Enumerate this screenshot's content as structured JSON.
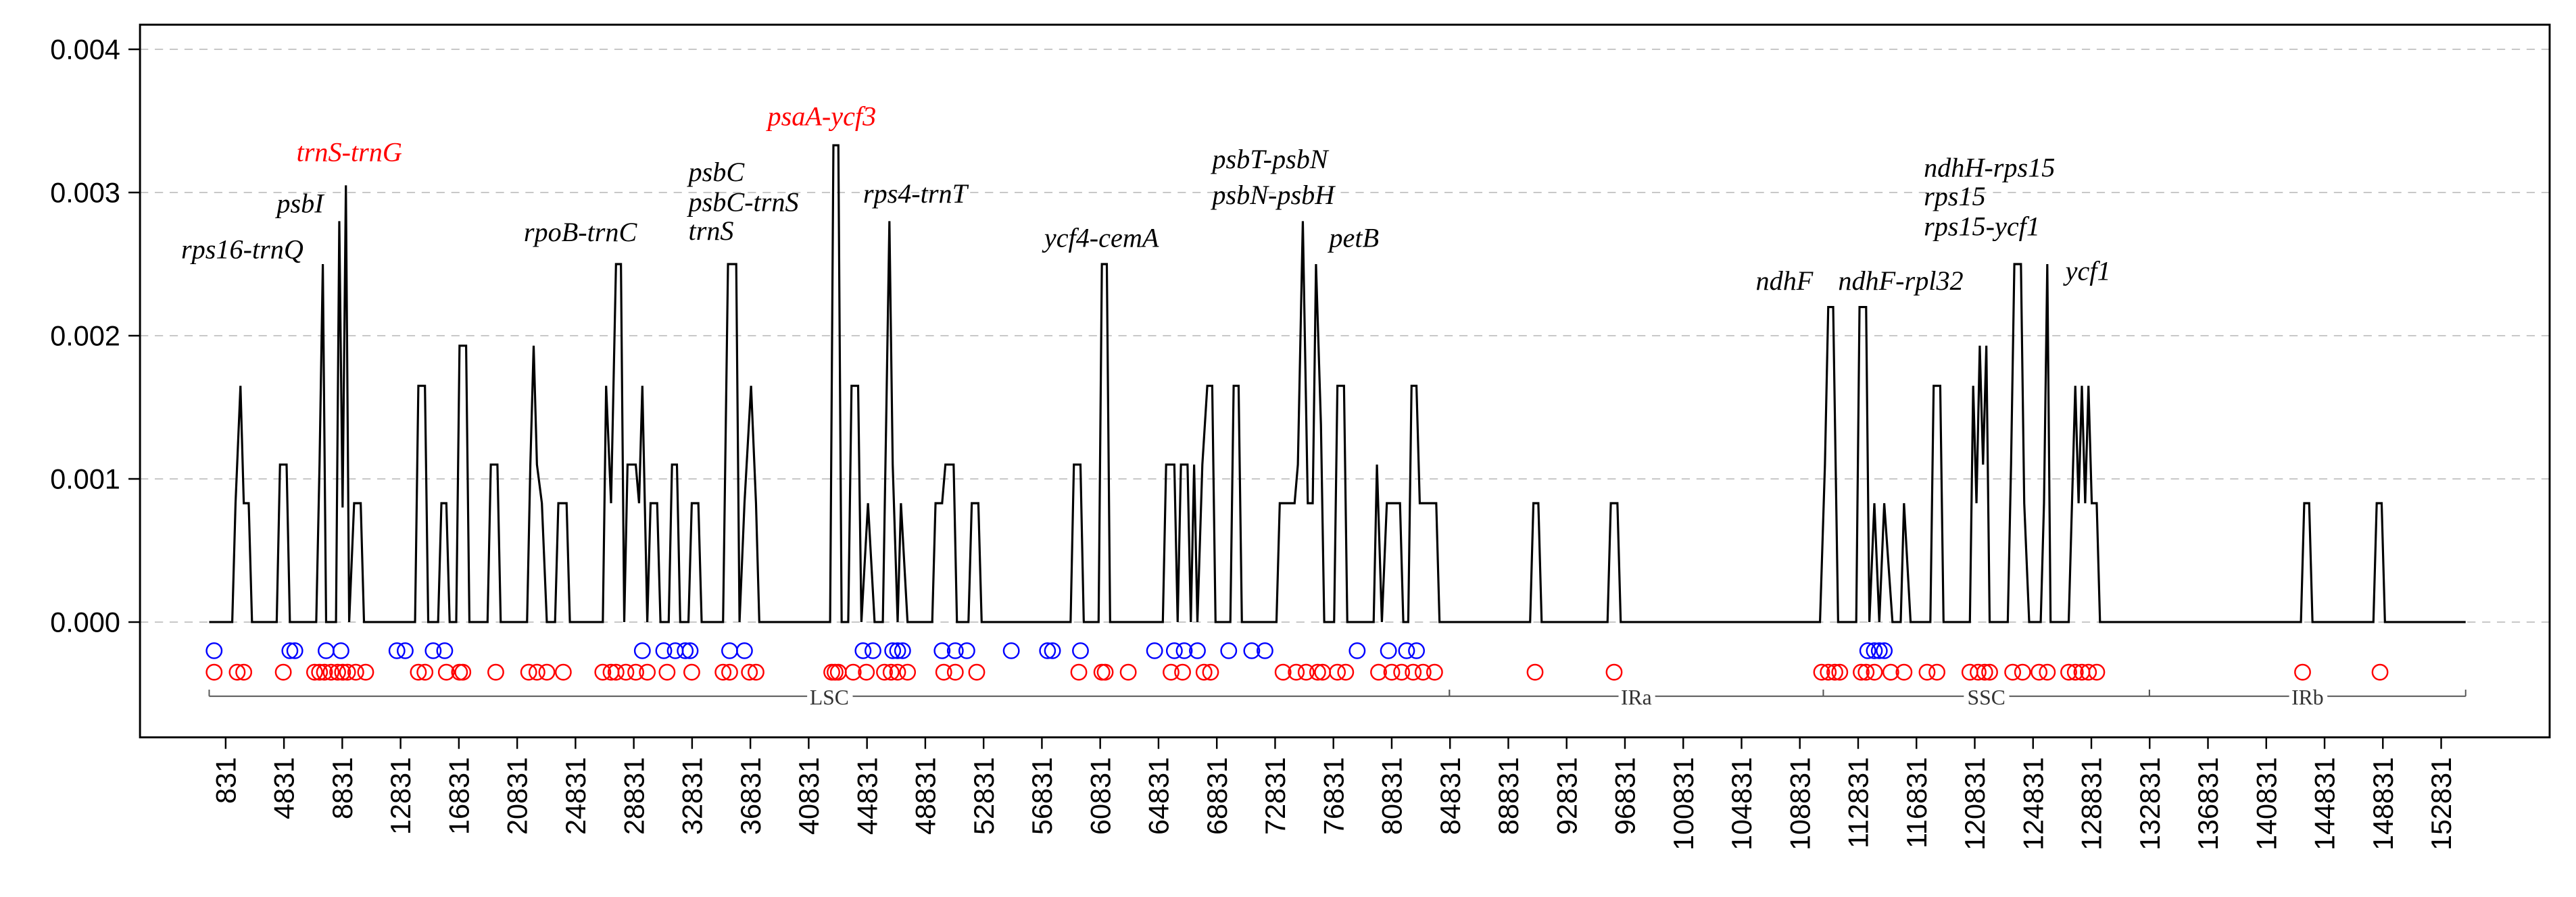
{
  "chart_data": {
    "type": "line",
    "xlim": [
      -5046,
      160273
    ],
    "ylim": [
      -0.000805,
      0.004172
    ],
    "xticks": [
      831,
      4831,
      8831,
      12831,
      16831,
      20831,
      24831,
      28831,
      32831,
      36831,
      40831,
      44831,
      48831,
      52831,
      56831,
      60831,
      64831,
      68831,
      72831,
      76831,
      80831,
      84831,
      88831,
      92831,
      96831,
      100831,
      104831,
      108831,
      112831,
      116831,
      120831,
      124831,
      128831,
      132831,
      136831,
      140831,
      144831,
      148831,
      152831
    ],
    "yticks": [
      {
        "value": 0,
        "label": "0.000"
      },
      {
        "value": 0.001,
        "label": "0.001"
      },
      {
        "value": 0.002,
        "label": "0.002"
      },
      {
        "value": 0.003,
        "label": "0.003"
      },
      {
        "value": 0.004,
        "label": "0.004"
      }
    ],
    "grid": true,
    "series": [
      {
        "type": "line",
        "color": "#000000",
        "x": [
          -300,
          1282,
          1508,
          1847,
          2073,
          2412,
          2638,
          4333,
          4559,
          5011,
          5237,
          7045,
          7271,
          7497,
          7723,
          8401,
          8627,
          8853,
          9079,
          9305,
          9644,
          10096,
          10322,
          13825,
          14051,
          14503,
          14729,
          15407,
          15633,
          15972,
          16198,
          16650,
          16876,
          17328,
          17554,
          18797,
          19023,
          19475,
          19701,
          21509,
          21735,
          21961,
          22187,
          22526,
          22865,
          23430,
          23656,
          24221,
          24447,
          26707,
          26933,
          27272,
          27611,
          27950,
          28176,
          28402,
          28967,
          29193,
          29419,
          29758,
          29984,
          30436,
          30662,
          31227,
          31453,
          31792,
          32018,
          32583,
          32809,
          33261,
          33487,
          34956,
          35295,
          35860,
          36086,
          36425,
          36877,
          37216,
          37442,
          42301,
          42527,
          42866,
          43092,
          43544,
          43770,
          44222,
          44448,
          44900,
          45352,
          45917,
          46143,
          46369,
          46595,
          46934,
          47160,
          47612,
          49307,
          49533,
          49985,
          50211,
          50776,
          51002,
          51793,
          52019,
          52471,
          52697,
          58799,
          59025,
          59477,
          59703,
          60720,
          60946,
          61285,
          61511,
          65127,
          65353,
          65918,
          66144,
          66370,
          66822,
          67048,
          67274,
          67500,
          67839,
          68178,
          68517,
          68743,
          69760,
          69986,
          70325,
          70551,
          72924,
          73150,
          74167,
          74393,
          74732,
          75071,
          75410,
          75636,
          75975,
          76201,
          76879,
          77105,
          77557,
          77783,
          79591,
          79817,
          80156,
          80495,
          81399,
          81625,
          81964,
          82190,
          82529,
          82755,
          83885,
          84111,
          90326,
          90552,
          90891,
          91117,
          95637,
          95863,
          96315,
          96541,
          110214,
          110553,
          110779,
          111118,
          111457,
          112700,
          112926,
          113378,
          113604,
          113943,
          114282,
          114621,
          115186,
          115751,
          115977,
          116429,
          117785,
          118011,
          118463,
          118689,
          120497,
          120723,
          120949,
          121175,
          121401,
          121627,
          121853,
          123096,
          123322,
          123548,
          124000,
          124226,
          124565,
          125356,
          125582,
          125808,
          126034,
          127277,
          127503,
          127729,
          127955,
          128181,
          128407,
          128633,
          128859,
          129198,
          129424,
          143210,
          143436,
          143775,
          144001,
          148182,
          148408,
          148747,
          148973,
          154510
        ],
        "values": [
          0,
          0,
          0.00083,
          0.00165,
          0.00083,
          0.00083,
          0,
          0,
          0.0011,
          0.0011,
          0,
          0,
          0.0011,
          0.0025,
          0,
          0,
          0.0028,
          0.0008,
          0.00305,
          0,
          0.00083,
          0.00083,
          0,
          0,
          0.00165,
          0.00165,
          0,
          0,
          0.00083,
          0.00083,
          0,
          0,
          0.00193,
          0.00193,
          0,
          0,
          0.0011,
          0.0011,
          0,
          0,
          0.0011,
          0.00193,
          0.0011,
          0.00083,
          0,
          0,
          0.00083,
          0.00083,
          0,
          0,
          0.00165,
          0.00083,
          0.0025,
          0.0025,
          0,
          0.0011,
          0.0011,
          0.00083,
          0.00165,
          0,
          0.00083,
          0.00083,
          0,
          0,
          0.0011,
          0.0011,
          0,
          0,
          0.00083,
          0.00083,
          0,
          0,
          0.0025,
          0.0025,
          0,
          0.00083,
          0.00165,
          0.00083,
          0,
          0,
          0.00333,
          0.00333,
          0,
          0,
          0.00165,
          0.00165,
          0,
          0.00083,
          0,
          0,
          0.00138,
          0.0028,
          0.0011,
          0,
          0.00083,
          0,
          0,
          0.00083,
          0.00083,
          0.0011,
          0.0011,
          0,
          0,
          0.00083,
          0.00083,
          0,
          0,
          0.0011,
          0.0011,
          0,
          0,
          0.0025,
          0.0025,
          0,
          0,
          0.0011,
          0.0011,
          0,
          0.0011,
          0.0011,
          0,
          0.0011,
          0,
          0.0011,
          0.00165,
          0.00165,
          0,
          0,
          0.00165,
          0.00165,
          0,
          0,
          0.00083,
          0.00083,
          0.0011,
          0.0028,
          0.00083,
          0.00083,
          0.0025,
          0.00138,
          0,
          0,
          0.00165,
          0.00165,
          0,
          0,
          0.0011,
          0,
          0.00083,
          0.00083,
          0,
          0,
          0.00165,
          0.00165,
          0.00083,
          0.00083,
          0,
          0,
          0.00083,
          0.00083,
          0,
          0,
          0.00083,
          0.00083,
          0,
          0,
          0.0011,
          0.0022,
          0.0022,
          0,
          0,
          0.0022,
          0.0022,
          0,
          0.00083,
          0,
          0.00083,
          0,
          0,
          0.00083,
          0,
          0,
          0.00165,
          0.00165,
          0,
          0,
          0.00165,
          0.00083,
          0.00193,
          0.0011,
          0.00193,
          0,
          0,
          0.0011,
          0.0025,
          0.0025,
          0.00083,
          0,
          0,
          0.00083,
          0.0025,
          0,
          0,
          0.00083,
          0.00165,
          0.00083,
          0.00165,
          0.00083,
          0.00165,
          0.00083,
          0.00083,
          0,
          0,
          0.00083,
          0.00083,
          0,
          0,
          0.00083,
          0.00083,
          0,
          0
        ]
      },
      {
        "type": "scatter",
        "color": "#0000ff",
        "x": [
          39,
          5237,
          5576,
          7723,
          8740,
          12582,
          13147,
          15068,
          15859,
          29419,
          30888,
          31679,
          32357,
          32696,
          35408,
          36425,
          44561,
          45239,
          46595,
          46934,
          47273,
          49985,
          50889,
          51680,
          54731,
          57217,
          57556,
          59477,
          64562,
          65918,
          66596,
          67500,
          69647,
          71229,
          72133,
          78461,
          80608,
          81851,
          82529,
          113491,
          113943,
          114282,
          114621
        ],
        "values": [
          -0.0002,
          -0.0002,
          -0.0002,
          -0.0002,
          -0.0002,
          -0.0002,
          -0.0002,
          -0.0002,
          -0.0002,
          -0.0002,
          -0.0002,
          -0.0002,
          -0.0002,
          -0.0002,
          -0.0002,
          -0.0002,
          -0.0002,
          -0.0002,
          -0.0002,
          -0.0002,
          -0.0002,
          -0.0002,
          -0.0002,
          -0.0002,
          -0.0002,
          -0.0002,
          -0.0002,
          -0.0002,
          -0.0002,
          -0.0002,
          -0.0002,
          -0.0002,
          -0.0002,
          -0.0002,
          -0.0002,
          -0.0002,
          -0.0002,
          -0.0002,
          -0.0002,
          -0.0002,
          -0.0002,
          -0.0002,
          -0.0002
        ]
      },
      {
        "type": "scatter",
        "color": "#ff0000",
        "x": [
          39,
          1621,
          2073,
          4785,
          6932,
          7271,
          7610,
          8062,
          8514,
          8853,
          9192,
          9757,
          10435,
          14051,
          14503,
          15972,
          16876,
          17102,
          19362,
          21622,
          22187,
          22865,
          23995,
          26707,
          27272,
          27611,
          28289,
          28967,
          29758,
          31114,
          32809,
          34956,
          35408,
          36764,
          37216,
          42414,
          42640,
          42866,
          43883,
          44787,
          46030,
          46482,
          46934,
          47612,
          50098,
          50889,
          52358,
          59364,
          60946,
          61172,
          62754,
          65692,
          66483,
          67952,
          68404,
          73376,
          74280,
          74958,
          75749,
          76088,
          77105,
          77670,
          79930,
          80834,
          81512,
          82303,
          82981,
          83772,
          90665,
          96089,
          110327,
          110779,
          111231,
          111570,
          113039,
          113378,
          113943,
          115073,
          115977,
          117559,
          118237,
          120497,
          121062,
          121514,
          121853,
          123435,
          124113,
          125243,
          125808,
          127277,
          127729,
          128181,
          128633,
          129198,
          143323,
          148634
        ],
        "values": [
          -0.00035,
          -0.00035,
          -0.00035,
          -0.00035,
          -0.00035,
          -0.00035,
          -0.00035,
          -0.00035,
          -0.00035,
          -0.00035,
          -0.00035,
          -0.00035,
          -0.00035,
          -0.00035,
          -0.00035,
          -0.00035,
          -0.00035,
          -0.00035,
          -0.00035,
          -0.00035,
          -0.00035,
          -0.00035,
          -0.00035,
          -0.00035,
          -0.00035,
          -0.00035,
          -0.00035,
          -0.00035,
          -0.00035,
          -0.00035,
          -0.00035,
          -0.00035,
          -0.00035,
          -0.00035,
          -0.00035,
          -0.00035,
          -0.00035,
          -0.00035,
          -0.00035,
          -0.00035,
          -0.00035,
          -0.00035,
          -0.00035,
          -0.00035,
          -0.00035,
          -0.00035,
          -0.00035,
          -0.00035,
          -0.00035,
          -0.00035,
          -0.00035,
          -0.00035,
          -0.00035,
          -0.00035,
          -0.00035,
          -0.00035,
          -0.00035,
          -0.00035,
          -0.00035,
          -0.00035,
          -0.00035,
          -0.00035,
          -0.00035,
          -0.00035,
          -0.00035,
          -0.00035,
          -0.00035,
          -0.00035,
          -0.00035,
          -0.00035,
          -0.00035,
          -0.00035,
          -0.00035,
          -0.00035,
          -0.00035,
          -0.00035,
          -0.00035,
          -0.00035,
          -0.00035,
          -0.00035,
          -0.00035,
          -0.00035,
          -0.00035,
          -0.00035,
          -0.00035,
          -0.00035,
          -0.00035,
          -0.00035,
          -0.00035,
          -0.00035,
          -0.00035,
          -0.00035,
          -0.00035,
          -0.00035,
          -0.00035,
          -0.00035
        ]
      }
    ],
    "annotations": [
      {
        "text": "rps16-trnQ",
        "x": -2221,
        "y": 0.00254,
        "color": "#000000"
      },
      {
        "text": "psbI",
        "x": 4333,
        "y": 0.00286,
        "color": "#000000"
      },
      {
        "text": "trnS-trnG",
        "x": 5689,
        "y": 0.00322,
        "color": "#ff0000"
      },
      {
        "text": "rpoB-trnC",
        "x": 21283,
        "y": 0.00266,
        "color": "#000000"
      },
      {
        "text": "psbC",
        "x": 32583,
        "y": 0.00308,
        "color": "#000000"
      },
      {
        "text": "psbC-trnS",
        "x": 32583,
        "y": 0.00287,
        "color": "#000000"
      },
      {
        "text": "trnS",
        "x": 32583,
        "y": 0.00267,
        "color": "#000000"
      },
      {
        "text": "psaA-ycf3",
        "x": 38007,
        "y": 0.00347,
        "color": "#ff0000"
      },
      {
        "text": "rps4-trnT",
        "x": 44561,
        "y": 0.00293,
        "color": "#000000"
      },
      {
        "text": "ycf4-cemA",
        "x": 56991,
        "y": 0.00262,
        "color": "#000000"
      },
      {
        "text": "psbT-psbN",
        "x": 68517,
        "y": 0.00317,
        "color": "#000000"
      },
      {
        "text": "psbN-psbH",
        "x": 68517,
        "y": 0.00292,
        "color": "#000000"
      },
      {
        "text": "petB",
        "x": 76540,
        "y": 0.00262,
        "color": "#000000"
      },
      {
        "text": "ndhF",
        "x": 105807,
        "y": 0.00232,
        "color": "#000000"
      },
      {
        "text": "ndhF-rpl32",
        "x": 111457,
        "y": 0.00232,
        "color": "#000000"
      },
      {
        "text": "ndhH-rps15",
        "x": 117333,
        "y": 0.00311,
        "color": "#000000"
      },
      {
        "text": "rps15",
        "x": 117333,
        "y": 0.00291,
        "color": "#000000"
      },
      {
        "text": "rps15-ycf1",
        "x": 117333,
        "y": 0.0027,
        "color": "#000000"
      },
      {
        "text": "ycf1",
        "x": 127051,
        "y": 0.00239,
        "color": "#000000"
      }
    ],
    "regions": [
      {
        "label": "LSC",
        "start": -300,
        "end": 84789
      },
      {
        "label": "IRa",
        "start": 84789,
        "end": 110440
      },
      {
        "label": "SSC",
        "start": 110440,
        "end": 132814
      },
      {
        "label": "IRb",
        "start": 132814,
        "end": 154510
      }
    ]
  }
}
